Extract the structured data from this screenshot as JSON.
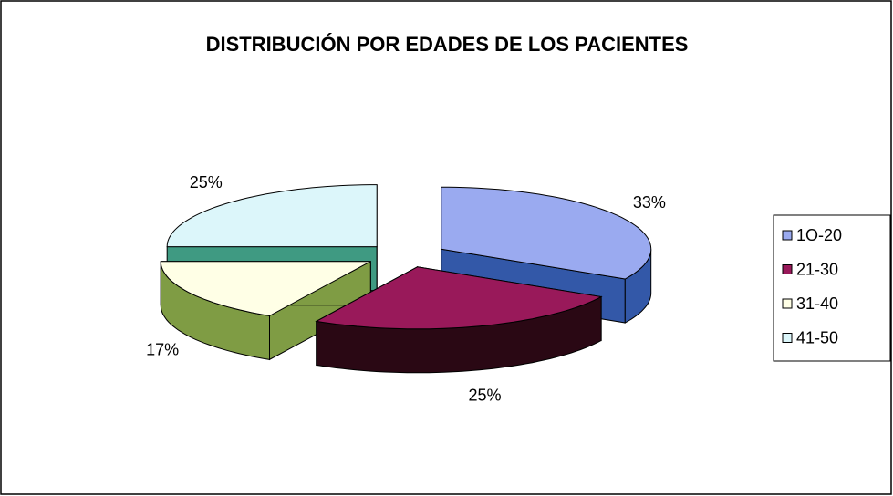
{
  "chart_data": {
    "type": "pie3d",
    "title": "DISTRIBUCIÓN POR EDADES DE LOS PACIENTES",
    "categories": [
      "1O-20",
      "21-30",
      "31-40",
      "41-50"
    ],
    "values": [
      33,
      25,
      17,
      25
    ],
    "value_labels": [
      "33%",
      "25%",
      "17%",
      "25%"
    ],
    "colors": [
      "#9aaaf0",
      "#99195a",
      "#ffffe6",
      "#dcf6fa"
    ],
    "side_colors": [
      "#3358a8",
      "#2a0814",
      "#7f9c44",
      "#3f9a82"
    ],
    "legend": "right"
  }
}
